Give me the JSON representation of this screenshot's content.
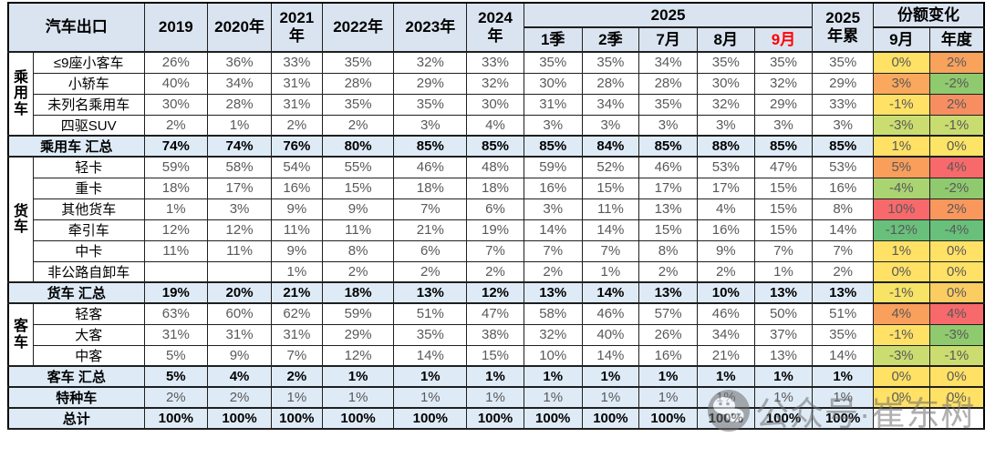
{
  "chart_data": {
    "type": "table",
    "title": "汽车出口",
    "columns": [
      "2019",
      "2020年",
      "2021年",
      "2022年",
      "2023年",
      "2024年",
      "2025-1季",
      "2025-2季",
      "2025-7月",
      "2025-8月",
      "2025-9月",
      "2025年累",
      "份额变化-9月",
      "份额变化-年度"
    ],
    "rows": [
      {
        "row_type": "d",
        "group": "乘用车",
        "group_span": 4,
        "label": "≤9座小客车",
        "values": [
          "26%",
          "36%",
          "33%",
          "35%",
          "32%",
          "33%",
          "35%",
          "35%",
          "34%",
          "35%",
          "35%",
          "35%"
        ],
        "share": [
          "0%",
          "2%"
        ],
        "share_colors": [
          "#FFE166",
          "#F9A25C"
        ]
      },
      {
        "row_type": "d",
        "label": "小轿车",
        "values": [
          "40%",
          "34%",
          "31%",
          "28%",
          "29%",
          "32%",
          "30%",
          "28%",
          "28%",
          "30%",
          "32%",
          "29%"
        ],
        "share": [
          "3%",
          "-2%"
        ],
        "share_colors": [
          "#F9A85D",
          "#8FCA6E"
        ]
      },
      {
        "row_type": "d",
        "label": "未列名乘用车",
        "values": [
          "30%",
          "28%",
          "31%",
          "35%",
          "35%",
          "30%",
          "31%",
          "34%",
          "35%",
          "32%",
          "29%",
          "33%"
        ],
        "share": [
          "-1%",
          "2%"
        ],
        "share_colors": [
          "#FFE166",
          "#F68E62"
        ]
      },
      {
        "row_type": "d",
        "label": "四驱SUV",
        "values": [
          "2%",
          "1%",
          "2%",
          "2%",
          "3%",
          "4%",
          "3%",
          "3%",
          "3%",
          "3%",
          "3%",
          "3%"
        ],
        "share": [
          "-3%",
          "-1%"
        ],
        "share_colors": [
          "#CBDD70",
          "#C9DC6F"
        ]
      },
      {
        "row_type": "sum",
        "label": "乘用车 汇总",
        "values": [
          "74%",
          "74%",
          "76%",
          "80%",
          "85%",
          "85%",
          "85%",
          "84%",
          "85%",
          "88%",
          "85%",
          "85%"
        ],
        "share": [
          "1%",
          "0%"
        ],
        "share_colors": [
          "#FFE166",
          "#FBE466"
        ]
      },
      {
        "row_type": "d",
        "group": "货车",
        "group_span": 6,
        "label": "轻卡",
        "values": [
          "59%",
          "58%",
          "54%",
          "55%",
          "46%",
          "48%",
          "59%",
          "52%",
          "46%",
          "53%",
          "47%",
          "53%"
        ],
        "share": [
          "5%",
          "4%"
        ],
        "share_colors": [
          "#F99E5B",
          "#F8696B"
        ]
      },
      {
        "row_type": "d",
        "label": "重卡",
        "values": [
          "18%",
          "17%",
          "16%",
          "15%",
          "18%",
          "18%",
          "16%",
          "15%",
          "17%",
          "17%",
          "15%",
          "16%"
        ],
        "share": [
          "-4%",
          "-2%"
        ],
        "share_colors": [
          "#AAD372",
          "#8FCA6E"
        ]
      },
      {
        "row_type": "d",
        "label": "其他货车",
        "values": [
          "1%",
          "3%",
          "9%",
          "9%",
          "7%",
          "6%",
          "3%",
          "11%",
          "13%",
          "4%",
          "15%",
          "8%"
        ],
        "share": [
          "10%",
          "2%"
        ],
        "share_colors": [
          "#F8696B",
          "#F9975D"
        ]
      },
      {
        "row_type": "d",
        "label": "牵引车",
        "values": [
          "12%",
          "12%",
          "11%",
          "11%",
          "21%",
          "19%",
          "14%",
          "14%",
          "15%",
          "16%",
          "15%",
          "14%"
        ],
        "share": [
          "-12%",
          "-4%"
        ],
        "share_colors": [
          "#68C07B",
          "#68C07B"
        ]
      },
      {
        "row_type": "d",
        "label": "中卡",
        "values": [
          "11%",
          "11%",
          "9%",
          "8%",
          "6%",
          "7%",
          "7%",
          "7%",
          "8%",
          "9%",
          "7%",
          "7%"
        ],
        "share": [
          "1%",
          "0%"
        ],
        "share_colors": [
          "#FFE166",
          "#FFE166"
        ]
      },
      {
        "row_type": "d",
        "label": "非公路自卸车",
        "values": [
          "",
          "",
          "1%",
          "2%",
          "2%",
          "2%",
          "2%",
          "1%",
          "2%",
          "2%",
          "1%",
          "2%"
        ],
        "share": [
          "0%",
          "0%"
        ],
        "share_colors": [
          "#FFE166",
          "#FFE166"
        ]
      },
      {
        "row_type": "sum",
        "label": "货车 汇总",
        "values": [
          "19%",
          "20%",
          "21%",
          "18%",
          "13%",
          "12%",
          "13%",
          "14%",
          "13%",
          "10%",
          "13%",
          "13%"
        ],
        "share": [
          "-1%",
          "0%"
        ],
        "share_colors": [
          "#F7E365",
          "#FBCC61"
        ]
      },
      {
        "row_type": "d",
        "group": "客车",
        "group_span": 3,
        "label": "轻客",
        "values": [
          "63%",
          "60%",
          "62%",
          "59%",
          "51%",
          "47%",
          "58%",
          "46%",
          "57%",
          "46%",
          "50%",
          "51%"
        ],
        "share": [
          "4%",
          "4%"
        ],
        "share_colors": [
          "#F9A05C",
          "#F8696B"
        ]
      },
      {
        "row_type": "d",
        "label": "大客",
        "values": [
          "31%",
          "31%",
          "31%",
          "29%",
          "35%",
          "38%",
          "32%",
          "40%",
          "26%",
          "34%",
          "37%",
          "35%"
        ],
        "share": [
          "-1%",
          "-3%"
        ],
        "share_colors": [
          "#FFE166",
          "#8FCA6E"
        ]
      },
      {
        "row_type": "d",
        "label": "中客",
        "values": [
          "5%",
          "9%",
          "7%",
          "12%",
          "14%",
          "15%",
          "10%",
          "14%",
          "16%",
          "21%",
          "13%",
          "14%"
        ],
        "share": [
          "-3%",
          "-1%"
        ],
        "share_colors": [
          "#CBDD70",
          "#CBDD70"
        ]
      },
      {
        "row_type": "sum",
        "label": "客车 汇总",
        "values": [
          "5%",
          "4%",
          "2%",
          "1%",
          "1%",
          "1%",
          "1%",
          "1%",
          "1%",
          "1%",
          "1%",
          "1%"
        ],
        "share": [
          "0%",
          "0%"
        ],
        "share_colors": [
          "#FFE166",
          "#FFE166"
        ]
      },
      {
        "row_type": "sp",
        "label": "特种车",
        "values": [
          "2%",
          "2%",
          "1%",
          "1%",
          "1%",
          "1%",
          "1%",
          "1%",
          "1%",
          "1%",
          "1%",
          "1%"
        ],
        "share": [
          "0%",
          "0%"
        ],
        "share_colors": [
          "#FFE166",
          "#FFE166"
        ]
      },
      {
        "row_type": "sum",
        "label": "总计",
        "values": [
          "100%",
          "100%",
          "100%",
          "100%",
          "100%",
          "100%",
          "100%",
          "100%",
          "100%",
          "100%",
          "100%",
          "100%"
        ],
        "share": [
          "",
          ""
        ],
        "share_colors": [
          "#FFFFFF",
          "#FFFFFF"
        ]
      }
    ]
  },
  "table": {
    "corner": "汽车出口",
    "years": [
      "2019",
      "2020年",
      "2021\n年",
      "2022年",
      "2023年",
      "2024\n年"
    ],
    "year2025": "2025",
    "months": [
      "1季",
      "2季",
      "7月",
      "8月",
      "9月"
    ],
    "ytd": "2025\n年累",
    "share": "份额变化",
    "share_sub": [
      "9月",
      "年度"
    ],
    "colors": {
      "header_bg": "#DAE4F0",
      "summary_row_bg": "#DEEBF7",
      "month_highlight": "#FF0000",
      "scale_red": "#F8696B",
      "scale_orange": "#F9A25C",
      "scale_yellow": "#FFE166",
      "scale_green": "#68C07B",
      "value_text": "#595959"
    }
  },
  "watermark": {
    "text": "公众号·崔东树",
    "icon": "wechat-icon"
  }
}
